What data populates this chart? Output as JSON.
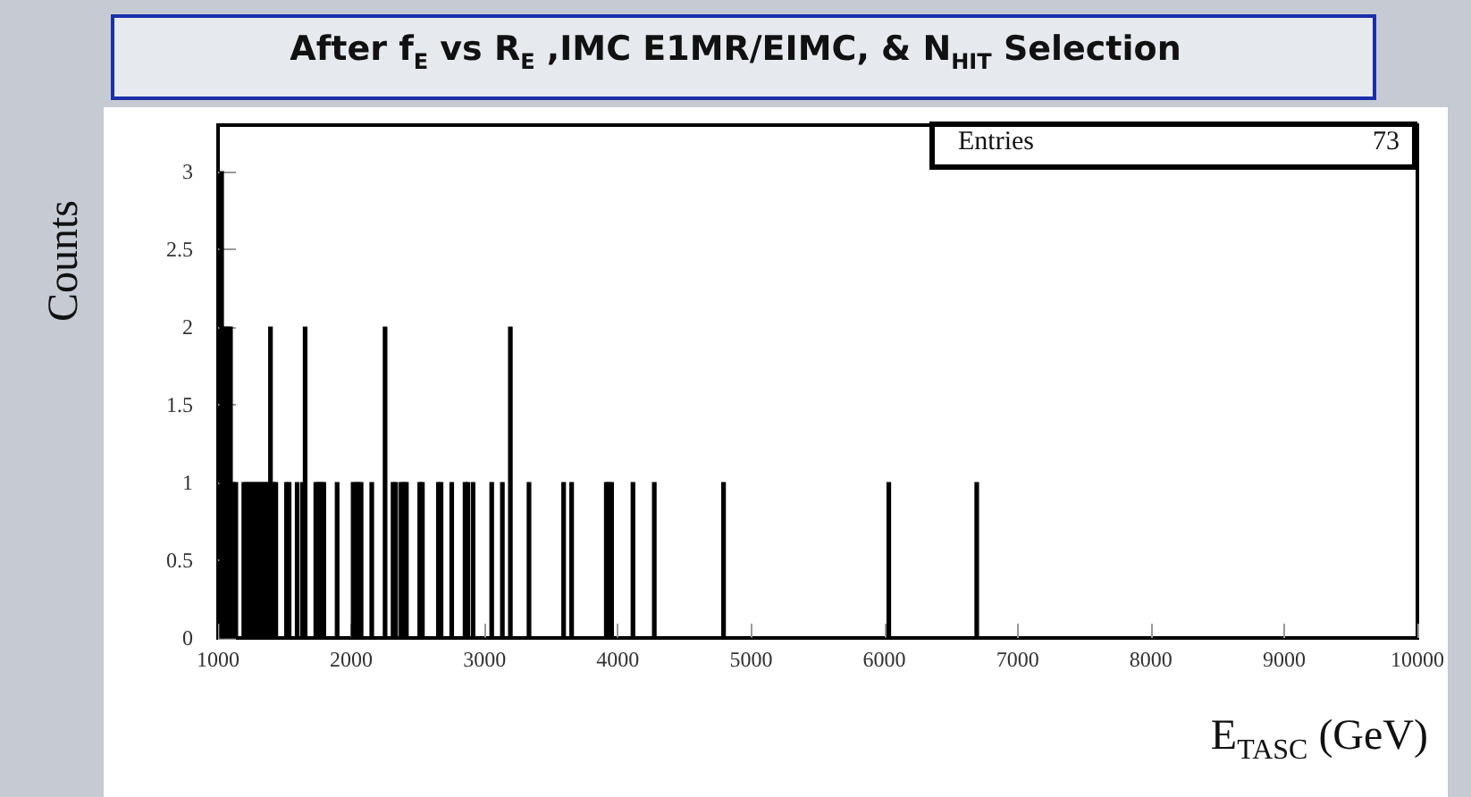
{
  "chart_data": {
    "type": "histogram",
    "title": "After f$_{E}$ vs R$_{E}$ ,IMC E1MR/EIMC, & N$_{HIT}$ Selection",
    "xlabel": "E$_{TASC}$ (GeV)",
    "ylabel": "Counts",
    "annotations": [
      "Entries",
      "73"
    ],
    "bins": [
      1000,
      1020,
      1040,
      1060,
      1080,
      1100,
      1120,
      1140,
      1180,
      1200,
      1220,
      1240,
      1260,
      1280,
      1300,
      1320,
      1340,
      1360,
      1380,
      1400,
      1420,
      1440,
      1500,
      1520,
      1540,
      1580,
      1600,
      1620,
      1640,
      1660,
      1720,
      1740,
      1760,
      1780,
      1800,
      1880,
      1900,
      2000,
      2020,
      2040,
      2060,
      2080,
      2140,
      2160,
      2240,
      2260,
      2300,
      2320,
      2340,
      2360,
      2380,
      2400,
      2420,
      2500,
      2520,
      2540,
      2640,
      2660,
      2680,
      2740,
      2760,
      2840,
      2860,
      2880,
      2900,
      2920,
      3040,
      3060,
      3120,
      3140,
      3180,
      3200,
      3320,
      3340,
      3580,
      3600,
      3640,
      3660,
      3900,
      3920,
      3940,
      3960,
      4100,
      4120,
      4260,
      4280,
      4780,
      4800,
      6020,
      6040,
      6680,
      6700
    ],
    "values": [
      3,
      2,
      2,
      2,
      2,
      1,
      1,
      0,
      1,
      1,
      1,
      1,
      1,
      1,
      1,
      1,
      1,
      1,
      2,
      1,
      1,
      0,
      1,
      1,
      0,
      1,
      0,
      1,
      2,
      0,
      1,
      1,
      1,
      1,
      0,
      1,
      0,
      1,
      1,
      1,
      1,
      0,
      1,
      0,
      2,
      0,
      1,
      1,
      0,
      1,
      1,
      1,
      0,
      1,
      1,
      0,
      1,
      1,
      0,
      1,
      0,
      1,
      1,
      0,
      1,
      0,
      1,
      0,
      1,
      0,
      2,
      0,
      1,
      0,
      1,
      0,
      1,
      0,
      1,
      1,
      1,
      0,
      1,
      0,
      1,
      0,
      1,
      0,
      1,
      0,
      1
    ],
    "color": "#000000",
    "xlim": [
      1000,
      10000
    ],
    "xticks": [
      1000,
      2000,
      3000,
      4000,
      5000,
      6000,
      7000,
      8000,
      9000,
      10000
    ],
    "ylim": [
      0,
      3.3
    ],
    "yticks": [
      0,
      0.5,
      1,
      1.5,
      2,
      2.5,
      3
    ],
    "grid": false
  }
}
